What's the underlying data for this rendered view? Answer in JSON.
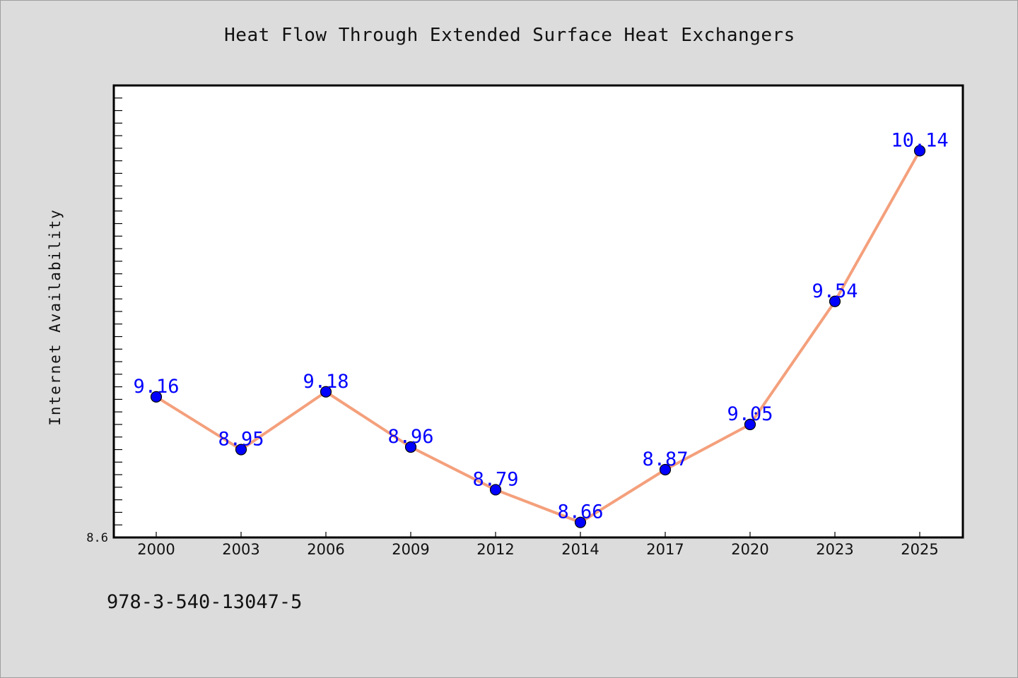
{
  "chart_data": {
    "type": "line",
    "title": "Heat Flow Through Extended Surface Heat Exchangers",
    "ylabel": "Internet Availability",
    "xlabel": "",
    "categories": [
      "2000",
      "2003",
      "2006",
      "2009",
      "2012",
      "2014",
      "2017",
      "2020",
      "2023",
      "2025"
    ],
    "series": [
      {
        "values": [
          9.16,
          8.95,
          9.18,
          8.96,
          8.79,
          8.66,
          8.87,
          9.05,
          9.54,
          10.14
        ]
      }
    ],
    "data_labels": [
      "9.16",
      "8.95",
      "9.18",
      "8.96",
      "8.79",
      "8.66",
      "8.87",
      "9.05",
      "9.54",
      "10.14"
    ],
    "ylim": [
      8.6,
      10.4
    ],
    "y_tick_labels": [
      "8.6"
    ],
    "grid": false,
    "line_color": "#f4a07c",
    "marker_color": "#0000ff",
    "label_color": "#0000ff",
    "background_color": "#dcdcdc",
    "plot_background_color": "#ffffff"
  },
  "footer": {
    "text": "978-3-540-13047-5"
  }
}
